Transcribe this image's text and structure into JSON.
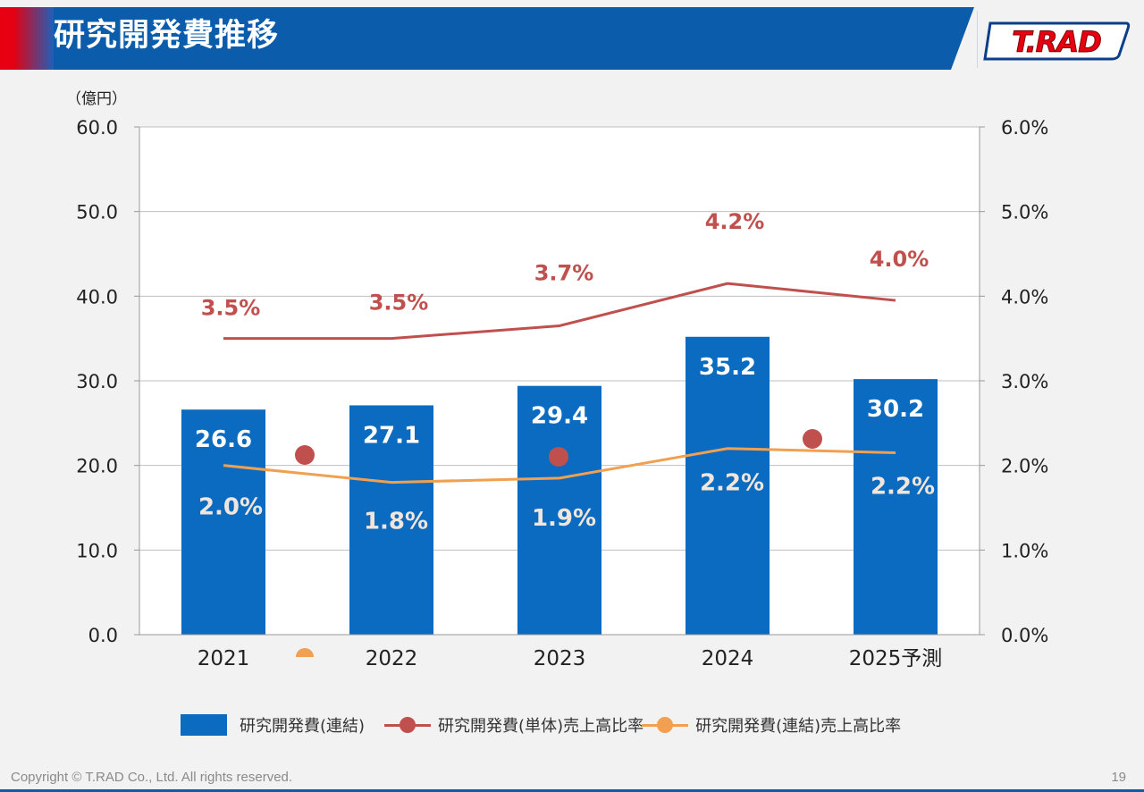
{
  "header": {
    "title": "研究開発費推移"
  },
  "logo": {
    "text": "T.RAD"
  },
  "footer": {
    "copyright": "Copyright © T.RAD Co., Ltd. All rights reserved.",
    "page": "19"
  },
  "colors": {
    "bar": "#0b6bc0",
    "standalone": "#c0504d",
    "consolidated": "#f0a050",
    "brand_blue": "#0b5cab",
    "brand_red": "#e60012"
  },
  "chart_data": {
    "type": "bar",
    "unit_label": "（億円）",
    "categories": [
      "2021",
      "2022",
      "2023",
      "2024",
      "2025予測"
    ],
    "y_left": {
      "min": 0,
      "max": 60,
      "ticks": [
        "0.0",
        "10.0",
        "20.0",
        "30.0",
        "40.0",
        "50.0",
        "60.0"
      ]
    },
    "y_right": {
      "min": 0,
      "max": 6,
      "ticks": [
        "0.0%",
        "1.0%",
        "2.0%",
        "3.0%",
        "4.0%",
        "5.0%",
        "6.0%"
      ]
    },
    "grid": true,
    "legend_position": "bottom",
    "series": [
      {
        "name": "研究開発費(連結)",
        "type": "bar",
        "axis": "left",
        "values": [
          26.6,
          27.1,
          29.4,
          35.2,
          30.2
        ],
        "labels": [
          "26.6",
          "27.1",
          "29.4",
          "35.2",
          "30.2"
        ]
      },
      {
        "name": "研究開発費(単体)売上高比率",
        "type": "line",
        "axis": "right",
        "values": [
          3.5,
          3.5,
          3.65,
          4.15,
          3.95
        ],
        "labels": [
          "3.5%",
          "3.5%",
          "3.7%",
          "4.2%",
          "4.0%"
        ]
      },
      {
        "name": "研究開発費(連結)売上高比率",
        "type": "line",
        "axis": "right",
        "values": [
          2.0,
          1.8,
          1.85,
          2.2,
          2.15
        ],
        "labels": [
          "2.0%",
          "1.8%",
          "1.9%",
          "2.2%",
          "2.2%"
        ]
      }
    ]
  }
}
